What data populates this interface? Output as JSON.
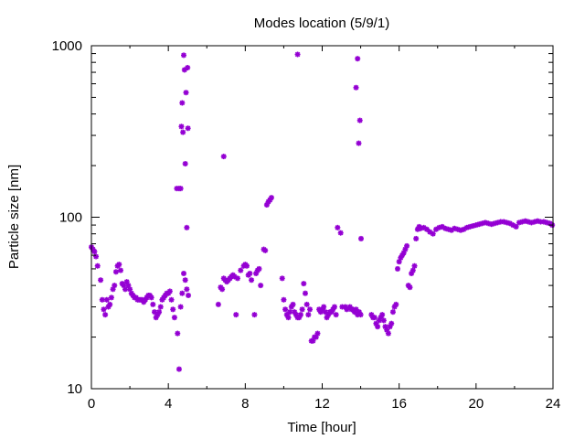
{
  "chart_data": {
    "type": "scatter",
    "title": "Modes location (5/9/1)",
    "xlabel": "Time [hour]",
    "ylabel": "Particle size [nm]",
    "xlim": [
      0,
      24
    ],
    "ylim": [
      10,
      1000
    ],
    "yscale": "log",
    "xticks": [
      0,
      4,
      8,
      12,
      16,
      20,
      24
    ],
    "yticks": [
      10,
      100,
      1000
    ],
    "grid": false,
    "marker_color": "#9400d3",
    "series": [
      {
        "x": [
          0.0,
          0.08,
          0.16,
          0.24,
          0.32,
          0.48,
          0.56,
          0.64,
          0.72,
          0.8,
          0.88,
          0.96,
          1.04,
          1.12,
          1.2,
          1.28,
          1.36,
          1.44,
          1.52,
          1.6,
          1.68,
          1.76,
          1.84,
          1.92,
          2.0,
          2.08,
          2.16,
          2.24,
          2.32,
          2.4,
          2.48,
          2.56,
          2.64,
          2.72,
          2.8,
          2.88,
          2.96,
          3.04,
          3.12,
          3.2,
          3.28,
          3.36,
          3.44,
          3.52,
          3.6,
          3.68,
          3.76,
          3.84,
          3.92,
          4.0,
          4.08,
          4.16,
          4.24,
          4.32,
          4.48,
          4.56,
          4.64,
          4.72,
          4.8,
          4.88,
          4.96,
          5.04,
          4.44,
          4.56,
          4.64,
          4.68,
          4.72,
          4.76,
          4.8,
          4.84,
          4.88,
          4.92,
          4.96,
          5.0,
          5.02,
          6.6,
          6.72,
          6.8,
          6.88,
          6.96,
          7.04,
          7.12,
          7.2,
          7.28,
          7.36,
          7.44,
          7.52,
          7.6,
          7.76,
          7.92,
          8.0,
          8.08,
          8.16,
          8.24,
          8.32,
          8.48,
          8.56,
          8.64,
          8.72,
          8.8,
          8.96,
          9.04,
          9.12,
          9.2,
          9.28,
          9.36,
          6.88,
          9.92,
          10.0,
          10.08,
          10.16,
          10.24,
          10.32,
          10.4,
          10.48,
          10.56,
          10.64,
          10.72,
          10.8,
          10.88,
          10.96,
          11.04,
          11.12,
          11.2,
          11.28,
          11.36,
          11.44,
          11.52,
          11.6,
          11.68,
          11.76,
          11.84,
          11.92,
          12.0,
          12.08,
          12.16,
          12.24,
          12.32,
          12.4,
          12.48,
          12.56,
          12.64,
          12.72,
          12.8,
          12.96,
          13.04,
          13.2,
          13.28,
          13.44,
          13.52,
          13.6,
          13.68,
          13.76,
          13.84,
          13.92,
          14.0,
          10.72,
          13.76,
          13.84,
          13.9,
          13.96,
          14.02,
          14.56,
          14.64,
          14.72,
          14.8,
          14.88,
          14.96,
          15.04,
          15.12,
          15.2,
          15.28,
          15.36,
          15.44,
          15.52,
          15.6,
          15.68,
          15.76,
          15.84,
          15.92,
          16.0,
          16.08,
          16.16,
          16.24,
          16.32,
          16.4,
          16.48,
          16.56,
          16.64,
          16.72,
          16.8,
          16.88,
          16.96,
          17.04,
          17.12,
          17.28,
          17.44,
          17.6,
          17.76,
          17.92,
          18.08,
          18.24,
          18.4,
          18.56,
          18.72,
          18.88,
          19.04,
          19.2,
          19.36,
          19.52,
          19.68,
          19.84,
          20.0,
          20.16,
          20.32,
          20.48,
          20.64,
          20.8,
          20.96,
          21.12,
          21.28,
          21.44,
          21.6,
          21.76,
          21.92,
          22.08,
          22.24,
          22.4,
          22.56,
          22.72,
          22.88,
          23.04,
          23.2,
          23.36,
          23.52,
          23.68,
          23.84,
          23.96
        ],
        "y": [
          67,
          65,
          63,
          59,
          52,
          43,
          33,
          29,
          27,
          33,
          30,
          31,
          34,
          38,
          40,
          48,
          52,
          53,
          49,
          41,
          40,
          38,
          42,
          40,
          38,
          36,
          35,
          34,
          34,
          33,
          33,
          33,
          33,
          32,
          33,
          34,
          35,
          35,
          34,
          31,
          28,
          26,
          27,
          28,
          30,
          33,
          34,
          35,
          36,
          36,
          37,
          33,
          29,
          26,
          21,
          13,
          30,
          36,
          47,
          43,
          38,
          35,
          147,
          147,
          147,
          338,
          464,
          313,
          880,
          723,
          205,
          533,
          87,
          745,
          330,
          31,
          39,
          38,
          44,
          43,
          42,
          43,
          44,
          45,
          46,
          45,
          27,
          44,
          49,
          52,
          53,
          52,
          46,
          47,
          43,
          27,
          47,
          49,
          50,
          40,
          65,
          64,
          118,
          123,
          126,
          130,
          226,
          44,
          33,
          29,
          27,
          26,
          28,
          30,
          31,
          28,
          27,
          26,
          26,
          27,
          29,
          41,
          36,
          31,
          27,
          29,
          19,
          19,
          20,
          20,
          21,
          29,
          28,
          29,
          30,
          28,
          26,
          27,
          28,
          28,
          29,
          30,
          27,
          87,
          81,
          30,
          30,
          29,
          30,
          29,
          29,
          28,
          29,
          27,
          28,
          27,
          890,
          570,
          840,
          270,
          367,
          75,
          27,
          26,
          26,
          24,
          23,
          25,
          26,
          27,
          25,
          23,
          22,
          21,
          23,
          24,
          28,
          30,
          31,
          50,
          55,
          58,
          60,
          62,
          65,
          68,
          40,
          39,
          47,
          49,
          52,
          75,
          85,
          88,
          86,
          87,
          85,
          82,
          80,
          85,
          87,
          88,
          86,
          85,
          84,
          86,
          85,
          84,
          85,
          87,
          88,
          89,
          90,
          91,
          92,
          93,
          92,
          91,
          92,
          93,
          94,
          94,
          93,
          92,
          90,
          88,
          93,
          94,
          95,
          94,
          93,
          94,
          95,
          94,
          94,
          93,
          92,
          90
        ]
      }
    ]
  }
}
